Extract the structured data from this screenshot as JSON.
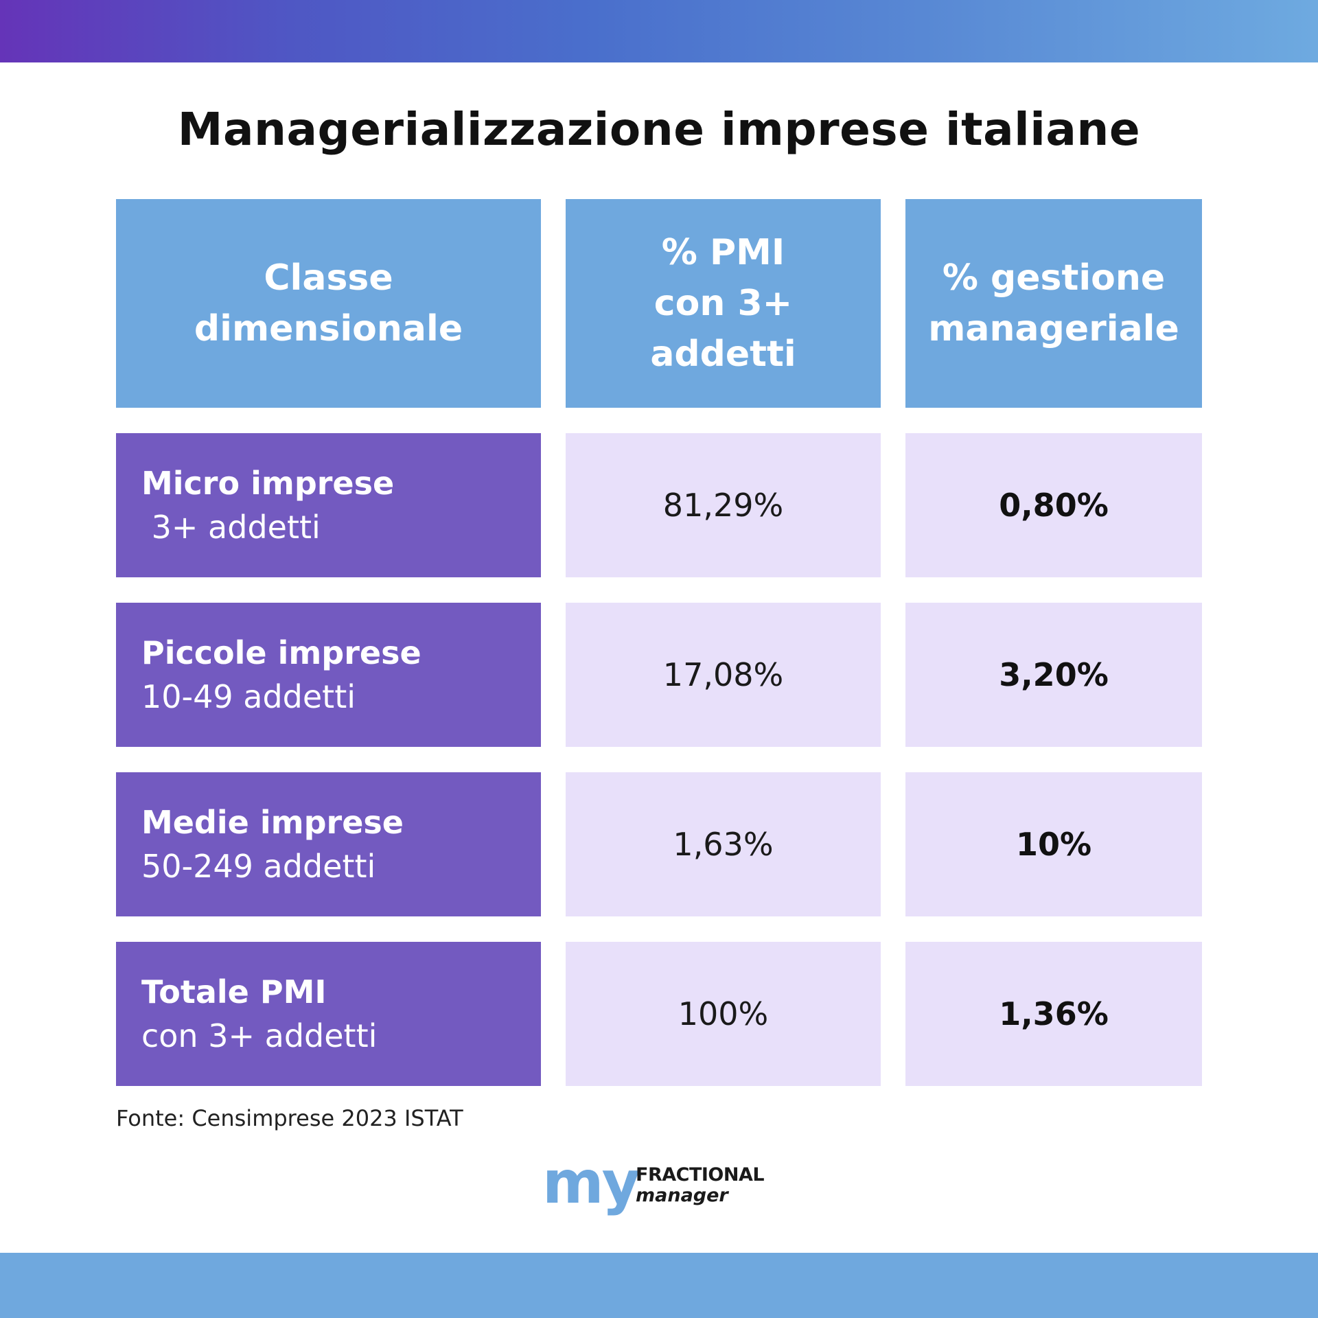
{
  "title": "Managerializzazione imprese italiane",
  "colors": {
    "header_bg": "#6fa8de",
    "label_bg": "#735ac0",
    "value_bg": "#e8e0fa",
    "top_bar_start": "#6534b8",
    "top_bar_end": "#6eaae0",
    "bottom_bar": "#6fa8de"
  },
  "chart_data": {
    "type": "table",
    "title": "Managerializzazione imprese italiane",
    "columns": [
      "Classe\ndimensionale",
      "% PMI\ncon 3+\naddetti",
      "% gestione\nmanageriale"
    ],
    "rows": [
      {
        "classe": "Micro imprese",
        "addetti": " 3+ addetti",
        "pmi": "81,29%",
        "gestione": "0,80%"
      },
      {
        "classe": "Piccole imprese",
        "addetti": "10-49 addetti",
        "pmi": "17,08%",
        "gestione": "3,20%"
      },
      {
        "classe": "Medie imprese",
        "addetti": "50-249 addetti",
        "pmi": "1,63%",
        "gestione": "10%"
      },
      {
        "classe": "Totale PMI",
        "addetti": "con 3+ addetti",
        "pmi": "100%",
        "gestione": "1,36%"
      }
    ],
    "source": "Fonte: Censimprese 2023 ISTAT"
  },
  "logo": {
    "my": "my",
    "line1": "FRACTIONAL",
    "line2": "manager"
  }
}
